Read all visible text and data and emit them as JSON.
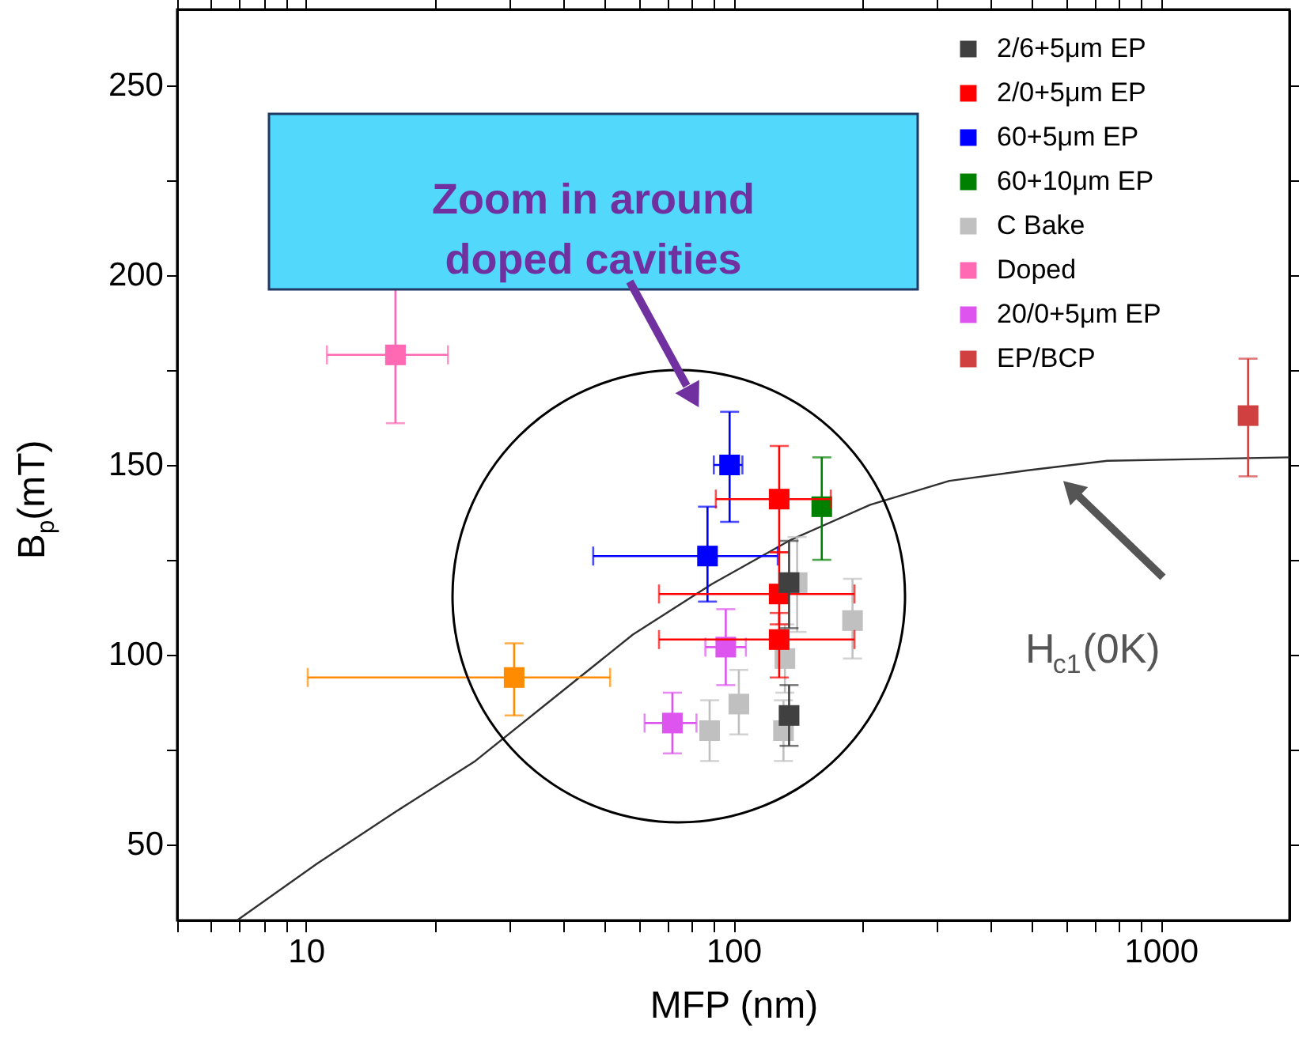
{
  "chart_data": {
    "type": "scatter",
    "xlabel": "MFP (nm)",
    "ylabel": "B$_{p}$(mT)",
    "log": "x",
    "xlim": [
      5,
      2000
    ],
    "ylim": [
      30,
      270
    ],
    "xticks": [
      {
        "value": 5,
        "label": null
      },
      {
        "value": 6,
        "label": null
      },
      {
        "value": 7,
        "label": null
      },
      {
        "value": 8,
        "label": null
      },
      {
        "value": 9,
        "label": null
      },
      10,
      {
        "value": 20,
        "label": null
      },
      {
        "value": 30,
        "label": null
      },
      {
        "value": 40,
        "label": null
      },
      {
        "value": 50,
        "label": null
      },
      {
        "value": 60,
        "label": null
      },
      {
        "value": 70,
        "label": null
      },
      {
        "value": 80,
        "label": null
      },
      {
        "value": 90,
        "label": null
      },
      100,
      {
        "value": 200,
        "label": null
      },
      {
        "value": 300,
        "label": null
      },
      {
        "value": 400,
        "label": null
      },
      {
        "value": 500,
        "label": null
      },
      {
        "value": 600,
        "label": null
      },
      {
        "value": 700,
        "label": null
      },
      {
        "value": 800,
        "label": null
      },
      {
        "value": 900,
        "label": null
      },
      1000
    ],
    "yticks": [
      50,
      {
        "value": 75,
        "label": null
      },
      100,
      {
        "value": 125,
        "label": null
      },
      150,
      {
        "value": 175,
        "label": null
      },
      200,
      {
        "value": 225,
        "label": null
      },
      250
    ],
    "grid": false,
    "legend": "top right",
    "marker": "square",
    "series": [
      {
        "name": "2/6+5μm EP",
        "color": "#404040",
        "x": [
          135,
          135
        ],
        "values": [
          119,
          84
        ],
        "errors": [
          [
            107,
            130
          ],
          [
            76,
            92
          ]
        ],
        "xerrors": [
          null,
          null
        ]
      },
      {
        "name": "2/0+5μm EP",
        "color": "#ff0000",
        "x": [
          128,
          128,
          128
        ],
        "values": [
          141,
          116,
          104
        ],
        "errors": [
          [
            127,
            155
          ],
          [
            108,
            127
          ],
          [
            94,
            111
          ]
        ],
        "xerrors": [
          [
            91,
            169
          ],
          [
            67,
            192
          ],
          [
            67,
            192
          ]
        ]
      },
      {
        "name": "60+5μm EP",
        "color": "#0000ff",
        "x": [
          98,
          87
        ],
        "values": [
          150,
          126
        ],
        "errors": [
          [
            135,
            164
          ],
          [
            114,
            139
          ]
        ],
        "xerrors": [
          [
            90,
            105
          ],
          [
            47,
            127
          ]
        ]
      },
      {
        "name": "60+10μm EP",
        "color": "#008000",
        "x": [
          161
        ],
        "values": [
          139
        ],
        "errors": [
          [
            125,
            152
          ]
        ],
        "xerrors": [
          null
        ]
      },
      {
        "name": "C Bake",
        "color": "#c0c0c0",
        "x": [
          141,
          190,
          132,
          103,
          131,
          88
        ],
        "values": [
          119,
          109,
          99,
          87,
          80,
          80
        ],
        "errors": [
          [
            106,
            131
          ],
          [
            99,
            120
          ],
          [
            90,
            108
          ],
          [
            79,
            96
          ],
          [
            72,
            88
          ],
          [
            72,
            88
          ]
        ],
        "xerrors": [
          null,
          null,
          null,
          null,
          null,
          null
        ]
      },
      {
        "name": "Doped",
        "color": "#ff69b4",
        "x": [
          16.2
        ],
        "values": [
          179
        ],
        "errors": [
          [
            161,
            197
          ]
        ],
        "xerrors": [
          [
            11.2,
            21.5
          ]
        ]
      },
      {
        "name": "20/0+5μm EP",
        "color": "#dd55ee",
        "x": [
          96,
          72
        ],
        "values": [
          102,
          82
        ],
        "errors": [
          [
            92,
            112
          ],
          [
            74,
            90
          ]
        ],
        "xerrors": [
          [
            86,
            107
          ],
          [
            62,
            82
          ]
        ]
      },
      {
        "name": "EP/BCP",
        "color": "#d04040",
        "x": [
          1600
        ],
        "values": [
          163
        ],
        "errors": [
          [
            147,
            178
          ]
        ],
        "xerrors": [
          null
        ]
      },
      {
        "color": "#ff8c00",
        "x": [
          30.7
        ],
        "values": [
          94
        ],
        "errors": [
          [
            84,
            103
          ]
        ],
        "xerrors": [
          [
            10.1,
            51.5
          ]
        ]
      },
      {
        "type": "line",
        "color": "#303030",
        "marker": "none",
        "line_style": "solid",
        "x": [
          6.9,
          10.6,
          16.2,
          24.9,
          38,
          58.2,
          89,
          136.5,
          209,
          320,
          489,
          749,
          2000
        ],
        "values": [
          30,
          44.9,
          58.6,
          72,
          88.6,
          105.3,
          118.6,
          130.3,
          139.5,
          145.8,
          148.6,
          151.1,
          152
        ]
      }
    ],
    "annotations": [
      "Zoom in around doped cavities",
      "H$_{c1}$(0K)"
    ]
  }
}
